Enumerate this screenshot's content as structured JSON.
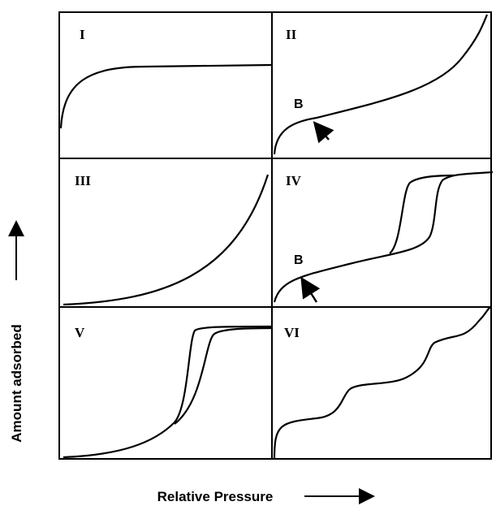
{
  "panels": [
    {
      "label": "I"
    },
    {
      "label": "II",
      "point_label": "B"
    },
    {
      "label": "III"
    },
    {
      "label": "IV",
      "point_label": "B"
    },
    {
      "label": "V"
    },
    {
      "label": "VI"
    }
  ],
  "y_axis_label": "Amount adsorbed",
  "x_axis_label": "Relative Pressure"
}
